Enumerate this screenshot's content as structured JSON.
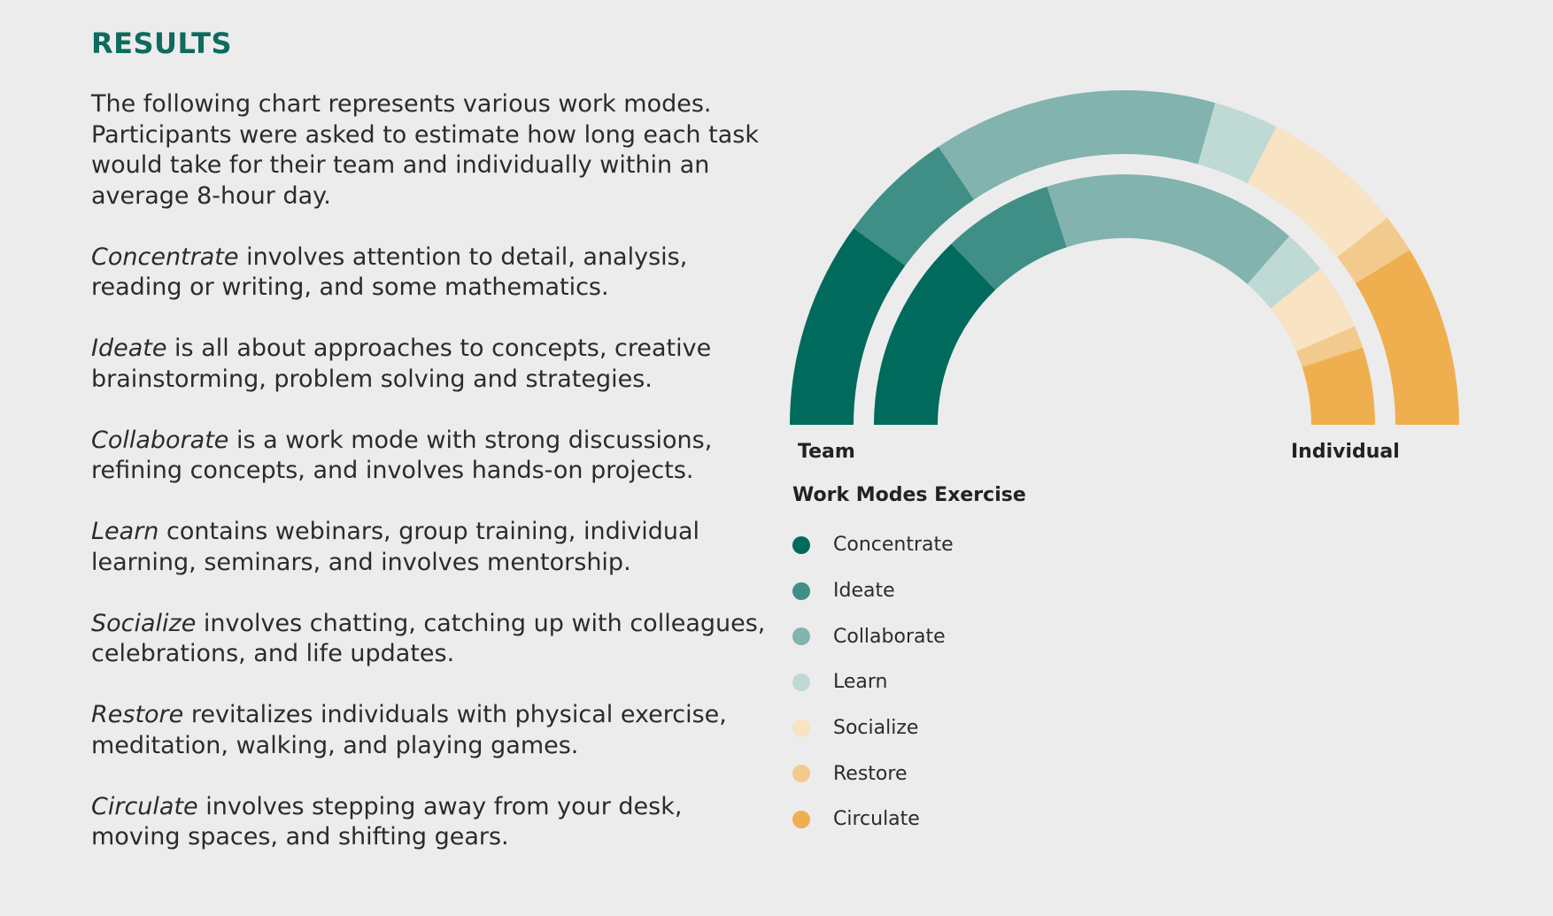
{
  "title": "RESULTS",
  "intro": "The following chart represents various work modes. Participants were asked to estimate how long each task would take for their team and individually within an average 8-hour day.",
  "definitions": [
    {
      "term": "Concentrate",
      "text": " involves attention to detail, analysis, reading or writing, and some mathematics."
    },
    {
      "term": "Ideate",
      "text": " is all about approaches to concepts, creative brainstorming, problem solving and strategies."
    },
    {
      "term": "Collaborate",
      "text": " is a work mode with strong discussions, refining concepts, and involves hands-on projects."
    },
    {
      "term": "Learn",
      "text": " contains webinars, group training, individual learning, seminars, and involves mentorship."
    },
    {
      "term": "Socialize",
      "text": " involves chatting, catching up with colleagues, celebrations, and life updates."
    },
    {
      "term": "Restore",
      "text": " revitalizes individuals with physical exercise, meditation, walking, and playing games."
    },
    {
      "term": "Circulate",
      "text": " involves stepping away from your desk, moving spaces, and shifting gears."
    }
  ],
  "chart_data": {
    "type": "donut-semicircle",
    "title": "Work Modes Exercise",
    "total_hours": 8,
    "categories": [
      "Concentrate",
      "Ideate",
      "Collaborate",
      "Learn",
      "Socialize",
      "Restore",
      "Circulate"
    ],
    "colors": [
      "#006a5c",
      "#408f86",
      "#82b3ae",
      "#bfd9d5",
      "#f8e3c3",
      "#f3ca8d",
      "#efaf4f"
    ],
    "series": [
      {
        "name": "Team",
        "values": [
          1.6,
          0.9,
          2.2,
          0.5,
          1.1,
          0.3,
          1.4
        ]
      },
      {
        "name": "Individual",
        "values": [
          1.8,
          1.0,
          2.3,
          0.4,
          0.6,
          0.2,
          0.7
        ]
      }
    ],
    "axis_labels": {
      "left": "Team",
      "right": "Individual"
    },
    "legend_position": "bottom-left"
  }
}
